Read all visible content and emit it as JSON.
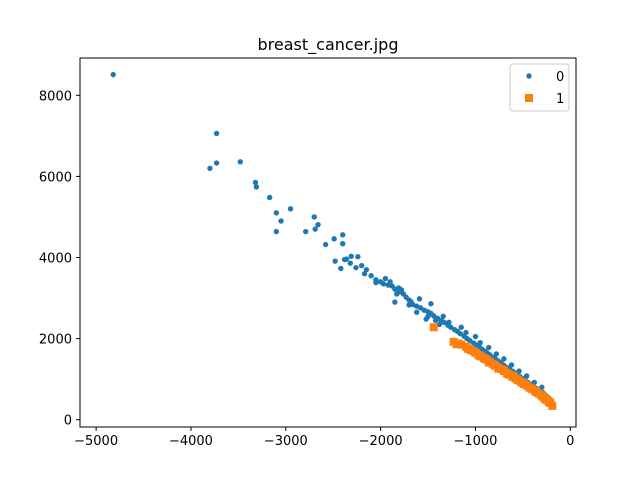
{
  "chart_data": {
    "type": "scatter",
    "title": "breast_cancer.jpg",
    "xlabel": "",
    "ylabel": "",
    "xlim": [
      -5000,
      0
    ],
    "ylim": [
      0,
      9000
    ],
    "x_ticks": [
      -5000,
      -4000,
      -3000,
      -2000,
      -1000,
      0
    ],
    "x_tick_labels": [
      "−5000",
      "−4000",
      "−3000",
      "−2000",
      "−1000",
      "0"
    ],
    "y_ticks": [
      0,
      2000,
      4000,
      6000,
      8000
    ],
    "y_tick_labels": [
      "0",
      "2000",
      "4000",
      "6000",
      "8000"
    ],
    "grid": false,
    "legend_position": "top-right",
    "series": [
      {
        "name": "0",
        "marker": "circle",
        "color": "#1f77b4",
        "points": [
          [
            -4820,
            8510
          ],
          [
            -3730,
            7060
          ],
          [
            -3730,
            6330
          ],
          [
            -3800,
            6200
          ],
          [
            -3480,
            6360
          ],
          [
            -3320,
            5850
          ],
          [
            -3310,
            5740
          ],
          [
            -3170,
            5480
          ],
          [
            -3100,
            5100
          ],
          [
            -2950,
            5200
          ],
          [
            -3050,
            4900
          ],
          [
            -3100,
            4640
          ],
          [
            -2790,
            4640
          ],
          [
            -2700,
            5000
          ],
          [
            -2660,
            4810
          ],
          [
            -2690,
            4700
          ],
          [
            -2580,
            4320
          ],
          [
            -2490,
            4460
          ],
          [
            -2400,
            4560
          ],
          [
            -2400,
            4340
          ],
          [
            -2310,
            4030
          ],
          [
            -2240,
            4020
          ],
          [
            -2480,
            3910
          ],
          [
            -2380,
            3950
          ],
          [
            -2360,
            3960
          ],
          [
            -2420,
            3730
          ],
          [
            -2320,
            3860
          ],
          [
            -2200,
            3800
          ],
          [
            -2170,
            3600
          ],
          [
            -2100,
            3550
          ],
          [
            -2050,
            3450
          ],
          [
            -2000,
            3400
          ],
          [
            -1970,
            3350
          ],
          [
            -1920,
            3320
          ],
          [
            -1880,
            3300
          ],
          [
            -1850,
            3220
          ],
          [
            -1810,
            3250
          ],
          [
            -1800,
            3150
          ],
          [
            -1760,
            3100
          ],
          [
            -1730,
            3020
          ],
          [
            -1700,
            2950
          ],
          [
            -1680,
            2910
          ],
          [
            -1660,
            2840
          ],
          [
            -1620,
            2800
          ],
          [
            -1580,
            2760
          ],
          [
            -1540,
            2700
          ],
          [
            -1500,
            2660
          ],
          [
            -1470,
            2620
          ],
          [
            -1440,
            2560
          ],
          [
            -1400,
            2500
          ],
          [
            -1360,
            2440
          ],
          [
            -1330,
            2400
          ],
          [
            -1290,
            2330
          ],
          [
            -1260,
            2280
          ],
          [
            -1220,
            2220
          ],
          [
            -1190,
            2180
          ],
          [
            -1160,
            2120
          ],
          [
            -1120,
            2060
          ],
          [
            -1090,
            2000
          ],
          [
            -1060,
            1950
          ],
          [
            -1020,
            1890
          ],
          [
            -990,
            1840
          ],
          [
            -960,
            1790
          ],
          [
            -930,
            1740
          ],
          [
            -900,
            1690
          ],
          [
            -880,
            1650
          ],
          [
            -850,
            1600
          ],
          [
            -820,
            1540
          ],
          [
            -790,
            1500
          ],
          [
            -760,
            1450
          ],
          [
            -730,
            1400
          ],
          [
            -700,
            1340
          ],
          [
            -670,
            1290
          ],
          [
            -640,
            1240
          ],
          [
            -610,
            1200
          ],
          [
            -580,
            1150
          ],
          [
            -560,
            1100
          ],
          [
            -530,
            1060
          ],
          [
            -500,
            1010
          ],
          [
            -470,
            960
          ],
          [
            -440,
            910
          ],
          [
            -410,
            860
          ],
          [
            -380,
            810
          ],
          [
            -350,
            760
          ],
          [
            -320,
            720
          ],
          [
            -290,
            670
          ],
          [
            -270,
            620
          ],
          [
            -250,
            580
          ],
          [
            -230,
            540
          ],
          [
            -210,
            490
          ],
          [
            -2260,
            3750
          ],
          [
            -2050,
            3380
          ],
          [
            -1900,
            3400
          ],
          [
            -1780,
            3200
          ],
          [
            -1850,
            2900
          ],
          [
            -1700,
            2830
          ],
          [
            -1620,
            2650
          ],
          [
            -1500,
            2550
          ],
          [
            -1420,
            2450
          ],
          [
            -1380,
            2350
          ],
          [
            -1280,
            2400
          ],
          [
            -1150,
            2280
          ],
          [
            -1100,
            2150
          ],
          [
            -1000,
            2050
          ],
          [
            -950,
            1900
          ],
          [
            -860,
            1780
          ],
          [
            -780,
            1620
          ],
          [
            -700,
            1500
          ],
          [
            -620,
            1350
          ],
          [
            -540,
            1200
          ],
          [
            -460,
            1080
          ],
          [
            -380,
            920
          ],
          [
            -300,
            800
          ],
          [
            -1950,
            3480
          ],
          [
            -2150,
            3700
          ],
          [
            -1830,
            3100
          ],
          [
            -1590,
            2980
          ],
          [
            -1470,
            2860
          ],
          [
            -1520,
            2480
          ],
          [
            -1340,
            2550
          ]
        ]
      },
      {
        "name": "1",
        "marker": "square",
        "color": "#ff7f0e",
        "points": [
          [
            -1440,
            2280
          ],
          [
            -1230,
            1920
          ],
          [
            -1200,
            1860
          ],
          [
            -1150,
            1850
          ],
          [
            -1100,
            1800
          ],
          [
            -1050,
            1720
          ],
          [
            -1000,
            1650
          ],
          [
            -970,
            1600
          ],
          [
            -940,
            1560
          ],
          [
            -910,
            1520
          ],
          [
            -880,
            1480
          ],
          [
            -850,
            1430
          ],
          [
            -820,
            1380
          ],
          [
            -790,
            1330
          ],
          [
            -760,
            1290
          ],
          [
            -730,
            1250
          ],
          [
            -700,
            1200
          ],
          [
            -670,
            1150
          ],
          [
            -640,
            1110
          ],
          [
            -610,
            1060
          ],
          [
            -580,
            1020
          ],
          [
            -550,
            970
          ],
          [
            -520,
            930
          ],
          [
            -490,
            880
          ],
          [
            -460,
            840
          ],
          [
            -430,
            790
          ],
          [
            -400,
            750
          ],
          [
            -370,
            700
          ],
          [
            -340,
            650
          ],
          [
            -310,
            610
          ],
          [
            -290,
            570
          ],
          [
            -270,
            530
          ],
          [
            -250,
            490
          ],
          [
            -230,
            450
          ],
          [
            -210,
            410
          ],
          [
            -190,
            340
          ],
          [
            -1080,
            1750
          ],
          [
            -960,
            1580
          ],
          [
            -860,
            1410
          ],
          [
            -760,
            1260
          ],
          [
            -660,
            1130
          ],
          [
            -560,
            990
          ],
          [
            -460,
            850
          ],
          [
            -360,
            690
          ],
          [
            -260,
            500
          ],
          [
            -1180,
            1880
          ],
          [
            -1020,
            1690
          ],
          [
            -900,
            1500
          ],
          [
            -800,
            1350
          ],
          [
            -700,
            1220
          ],
          [
            -600,
            1080
          ],
          [
            -500,
            910
          ],
          [
            -400,
            770
          ],
          [
            -300,
            600
          ],
          [
            -220,
            430
          ]
        ]
      }
    ]
  }
}
